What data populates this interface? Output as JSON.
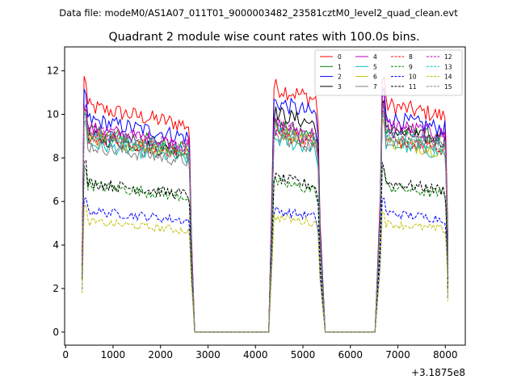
{
  "chart_data": {
    "type": "line",
    "suptitle": "Data file: modeM0/AS1A07_011T01_9000003482_23581cztM0_level2_quad_clean.evt",
    "title": "Quadrant 2 module wise count rates with 100.0s bins.",
    "xlabel": "",
    "ylabel": "",
    "offset_label": "+3.1875e8",
    "xlim": [
      -20,
      8420
    ],
    "ylim": [
      -0.6,
      13.1
    ],
    "xticks": [
      0,
      1000,
      2000,
      3000,
      4000,
      5000,
      6000,
      7000,
      8000
    ],
    "yticks": [
      0,
      2,
      4,
      6,
      8,
      10,
      12
    ],
    "legend_position": "upper right",
    "legend_columns": 4,
    "segments": [
      {
        "start": 350,
        "end": 2650
      },
      {
        "start": 4350,
        "end": 5360
      },
      {
        "start": 6630,
        "end": 8050
      }
    ],
    "gap_end_x": [
      2720,
      4280,
      5470,
      6520
    ],
    "series": [
      {
        "name": "0",
        "color": "#ff0000",
        "dash": "solid",
        "levels": [
          10.4,
          11.3,
          10.5
        ]
      },
      {
        "name": "1",
        "color": "#008000",
        "dash": "solid",
        "levels": [
          9.3,
          9.5,
          9.4
        ]
      },
      {
        "name": "2",
        "color": "#0000ff",
        "dash": "solid",
        "levels": [
          9.8,
          10.6,
          9.9
        ]
      },
      {
        "name": "3",
        "color": "#000000",
        "dash": "solid",
        "levels": [
          9.0,
          10.1,
          9.3
        ]
      },
      {
        "name": "4",
        "color": "#bf00bf",
        "dash": "solid",
        "levels": [
          9.4,
          9.6,
          9.6
        ]
      },
      {
        "name": "5",
        "color": "#00bfbf",
        "dash": "solid",
        "levels": [
          8.7,
          8.9,
          8.7
        ]
      },
      {
        "name": "6",
        "color": "#bfbf00",
        "dash": "solid",
        "levels": [
          9.0,
          9.3,
          8.8
        ]
      },
      {
        "name": "7",
        "color": "#808080",
        "dash": "solid",
        "levels": [
          8.6,
          9.0,
          8.9
        ]
      },
      {
        "name": "8",
        "color": "#ff0000",
        "dash": "dashed",
        "levels": [
          9.0,
          9.2,
          8.9
        ]
      },
      {
        "name": "9",
        "color": "#008000",
        "dash": "dashed",
        "levels": [
          6.8,
          6.9,
          6.7
        ]
      },
      {
        "name": "10",
        "color": "#0000ff",
        "dash": "dashed",
        "levels": [
          5.6,
          5.6,
          5.5
        ]
      },
      {
        "name": "11",
        "color": "#000000",
        "dash": "dashed",
        "levels": [
          6.9,
          7.1,
          6.9
        ]
      },
      {
        "name": "12",
        "color": "#bf00bf",
        "dash": "dashed",
        "levels": [
          9.3,
          9.4,
          9.3
        ]
      },
      {
        "name": "13",
        "color": "#00bfbf",
        "dash": "dashed",
        "levels": [
          9.1,
          9.3,
          9.1
        ]
      },
      {
        "name": "14",
        "color": "#bfbf00",
        "dash": "dashed",
        "levels": [
          5.1,
          5.3,
          5.0
        ]
      },
      {
        "name": "15",
        "color": "#808080",
        "dash": "dashed",
        "levels": [
          9.1,
          9.3,
          9.1
        ]
      }
    ]
  }
}
